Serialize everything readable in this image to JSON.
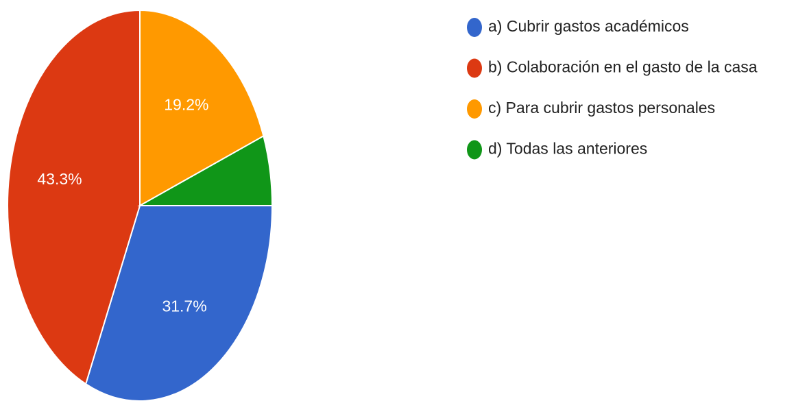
{
  "chart_data": {
    "type": "pie",
    "categories": [
      "a) Cubrir gastos académicos",
      "b) Colaboración en el gasto de la casa",
      "c) Para cubrir gastos personales",
      "d) Todas las anteriores"
    ],
    "values": [
      31.7,
      43.3,
      19.2,
      5.8
    ],
    "value_labels": [
      "31.7%",
      "43.3%",
      "19.2%",
      null
    ],
    "colors": [
      "#3366cc",
      "#dc3912",
      "#ff9900",
      "#109618"
    ],
    "legend": "right"
  }
}
